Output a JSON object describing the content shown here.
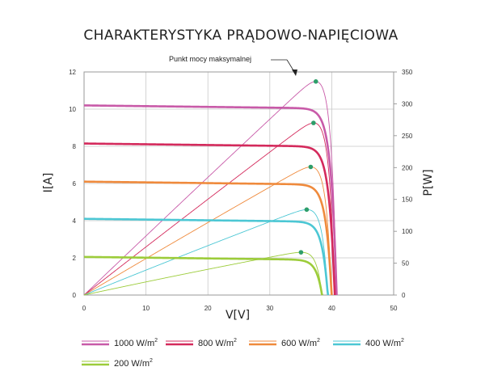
{
  "chart_data": {
    "type": "line",
    "title": "CHARAKTERYSTYKA PRĄDOWO-NAPIĘCIOWA",
    "xlabel": "V[V]",
    "ylabel_left": "I[A]",
    "ylabel_right": "P[W]",
    "xlim": [
      0,
      50
    ],
    "ylim_left": [
      0,
      12
    ],
    "ylim_right": [
      0,
      350
    ],
    "x_ticks": [
      "0",
      "10",
      "20",
      "30",
      "40",
      "50"
    ],
    "y_left_ticks": [
      "0",
      "2",
      "4",
      "6",
      "8",
      "10",
      "12"
    ],
    "y_right_ticks": [
      "0",
      "50",
      "100",
      "150",
      "200",
      "250",
      "300",
      "350"
    ],
    "grid": true,
    "legend_position": "bottom",
    "annotation": "Punkt mocy maksymalnej",
    "mpp_marker_color": "#2e9e6a",
    "series": [
      {
        "name": "1000 W/m",
        "sup": "2",
        "color": "#c85aa8",
        "isc": 10.2,
        "voc": 40.8,
        "mpp_v": 34.6,
        "mpp_i": 9.7,
        "pmax": 335
      },
      {
        "name": "800 W/m",
        "sup": "2",
        "color": "#d42a5c",
        "isc": 8.15,
        "voc": 40.5,
        "mpp_v": 34.5,
        "mpp_i": 7.8,
        "pmax": 270
      },
      {
        "name": "600 W/m",
        "sup": "2",
        "color": "#ef8a3c",
        "isc": 6.1,
        "voc": 40.0,
        "mpp_v": 34.4,
        "mpp_i": 5.85,
        "pmax": 201
      },
      {
        "name": "400 W/m",
        "sup": "2",
        "color": "#4cc7d4",
        "isc": 4.1,
        "voc": 39.4,
        "mpp_v": 34.3,
        "mpp_i": 3.9,
        "pmax": 134
      },
      {
        "name": "200 W/m",
        "sup": "2",
        "color": "#9ccc3a",
        "isc": 2.05,
        "voc": 38.5,
        "mpp_v": 34.2,
        "mpp_i": 1.95,
        "pmax": 67
      }
    ]
  }
}
